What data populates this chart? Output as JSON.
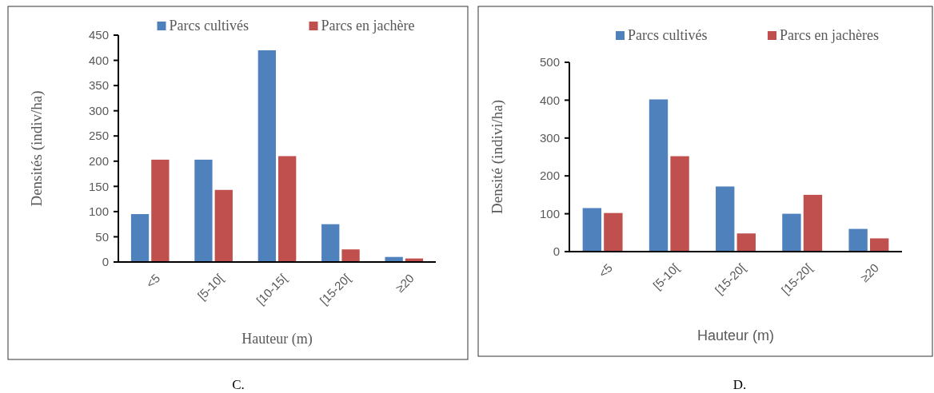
{
  "chart_data": [
    {
      "type": "bar",
      "xlabel": "Hauteur (m)",
      "ylabel": "Densités (indiv/ha)",
      "categories": [
        "<5",
        "[5-10[",
        "[10-15[",
        "[15-20[",
        "≥20"
      ],
      "series": [
        {
          "name": "Parcs cultivés",
          "color": "#4f81bd",
          "values": [
            95,
            203,
            420,
            75,
            10
          ]
        },
        {
          "name": "Parcs en jachère",
          "color": "#c0504d",
          "values": [
            203,
            143,
            210,
            25,
            7
          ]
        }
      ],
      "ylim": [
        0,
        450
      ],
      "yticks": [
        0,
        50,
        100,
        150,
        200,
        250,
        300,
        350,
        400,
        450
      ],
      "legend": "top",
      "grid": false,
      "annotations": [
        "C."
      ]
    },
    {
      "type": "bar",
      "xlabel": "Hauteur (m)",
      "ylabel": "Densité (indivi/ha)",
      "categories": [
        "<5",
        "[5-10[",
        "[15-20[",
        "[15-20[",
        "≥20"
      ],
      "series": [
        {
          "name": "Parcs cultivés",
          "color": "#4f81bd",
          "values": [
            115,
            402,
            172,
            100,
            60
          ]
        },
        {
          "name": "Parcs en jachères",
          "color": "#c0504d",
          "values": [
            102,
            252,
            48,
            150,
            35
          ]
        }
      ],
      "ylim": [
        0,
        500
      ],
      "yticks": [
        0,
        100,
        200,
        300,
        400,
        500
      ],
      "legend": "top",
      "grid": false,
      "annotations": [
        "D."
      ]
    }
  ]
}
